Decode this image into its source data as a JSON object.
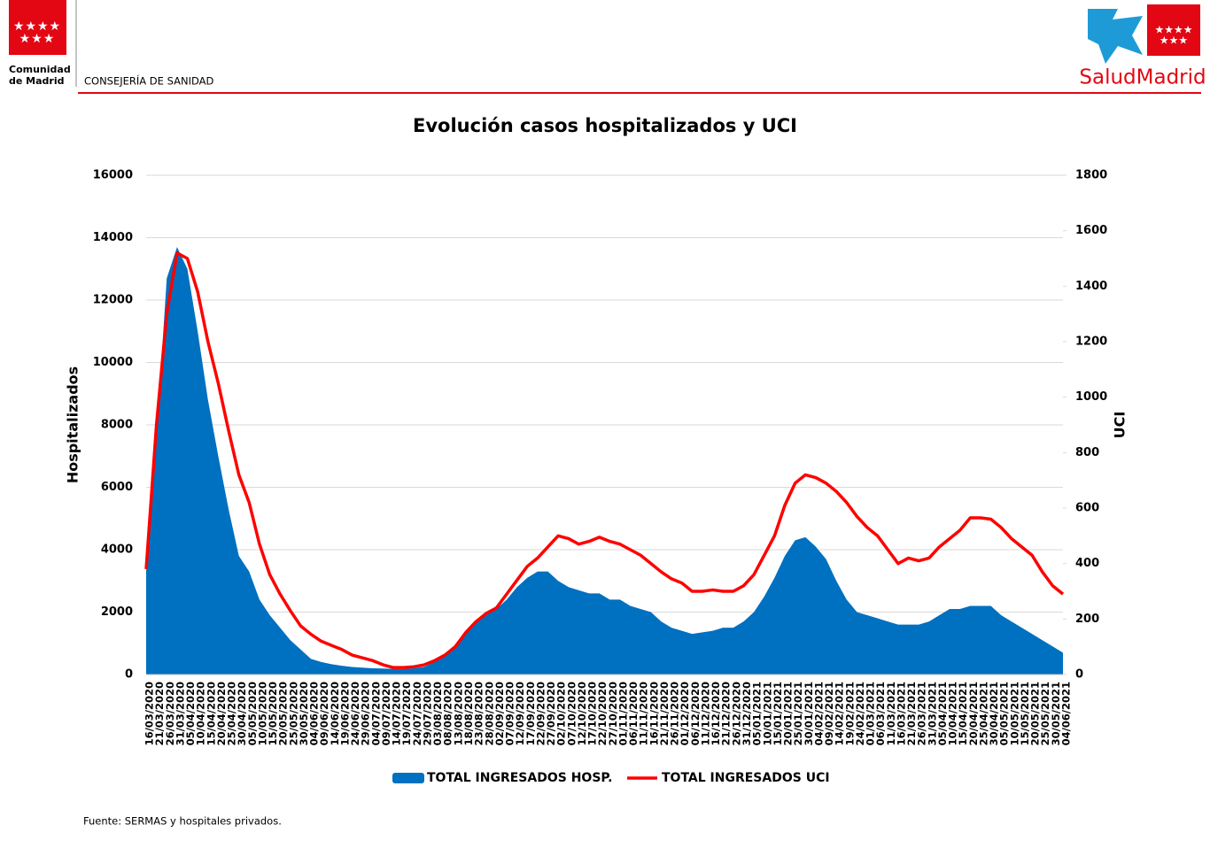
{
  "header": {
    "org_line1": "Comunidad",
    "org_line2": "de Madrid",
    "department": "CONSEJERÍA DE SANIDAD",
    "brand": "SaludMadrid"
  },
  "footer": "Fuente: SERMAS y hospitales privados.",
  "chart_data": {
    "type": "area_line",
    "title": "Evolución casos hospitalizados y UCI",
    "y_label": "Hospitalizados",
    "y2_label": "UCI",
    "categories": [
      "16/03/2020",
      "21/03/2020",
      "26/03/2020",
      "31/03/2020",
      "05/04/2020",
      "10/04/2020",
      "15/04/2020",
      "20/04/2020",
      "25/04/2020",
      "30/04/2020",
      "05/05/2020",
      "10/05/2020",
      "15/05/2020",
      "20/05/2020",
      "25/05/2020",
      "30/05/2020",
      "04/06/2020",
      "09/06/2020",
      "14/06/2020",
      "19/06/2020",
      "24/06/2020",
      "29/06/2020",
      "04/07/2020",
      "09/07/2020",
      "14/07/2020",
      "19/07/2020",
      "24/07/2020",
      "29/07/2020",
      "03/08/2020",
      "08/08/2020",
      "13/08/2020",
      "18/08/2020",
      "23/08/2020",
      "28/08/2020",
      "02/09/2020",
      "07/09/2020",
      "12/09/2020",
      "17/09/2020",
      "22/09/2020",
      "27/09/2020",
      "02/10/2020",
      "07/10/2020",
      "12/10/2020",
      "17/10/2020",
      "22/10/2020",
      "27/10/2020",
      "01/11/2020",
      "06/11/2020",
      "11/11/2020",
      "16/11/2020",
      "21/11/2020",
      "26/11/2020",
      "01/12/2020",
      "06/12/2020",
      "11/12/2020",
      "16/12/2020",
      "21/12/2020",
      "26/12/2020",
      "31/12/2020",
      "05/01/2021",
      "10/01/2021",
      "15/01/2021",
      "20/01/2021",
      "25/01/2021",
      "30/01/2021",
      "04/02/2021",
      "09/02/2021",
      "14/02/2021",
      "19/02/2021",
      "24/02/2021",
      "01/03/2021",
      "06/03/2021",
      "11/03/2021",
      "16/03/2021",
      "21/03/2021",
      "26/03/2021",
      "31/03/2021",
      "05/04/2021",
      "10/04/2021",
      "15/04/2021",
      "20/04/2021",
      "25/04/2021",
      "30/04/2021",
      "05/05/2021",
      "10/05/2021",
      "15/05/2021",
      "20/05/2021",
      "25/05/2021",
      "30/05/2021",
      "04/06/2021"
    ],
    "series": [
      {
        "name": "TOTAL INGRESADOS HOSP.",
        "kind": "area",
        "color": "#0070c0",
        "values": [
          3300,
          7600,
          12700,
          13700,
          13000,
          11000,
          8800,
          7000,
          5300,
          3800,
          3300,
          2400,
          1900,
          1500,
          1100,
          800,
          500,
          400,
          330,
          280,
          240,
          220,
          200,
          190,
          180,
          180,
          200,
          250,
          400,
          600,
          900,
          1300,
          1700,
          1900,
          2100,
          2400,
          2800,
          3100,
          3300,
          3300,
          3000,
          2800,
          2700,
          2600,
          2600,
          2400,
          2400,
          2200,
          2100,
          2000,
          1700,
          1500,
          1400,
          1300,
          1350,
          1400,
          1500,
          1500,
          1700,
          2000,
          2500,
          3100,
          3800,
          4300,
          4400,
          4100,
          3700,
          3000,
          2400,
          2000,
          1900,
          1800,
          1700,
          1600,
          1600,
          1600,
          1700,
          1900,
          2100,
          2100,
          2200,
          2200,
          2200,
          1900,
          1700,
          1500,
          1300,
          1100,
          900,
          700
        ]
      },
      {
        "name": "TOTAL INGRESADOS UCI",
        "kind": "line",
        "axis": "y2",
        "color": "#ff0000",
        "values": [
          380,
          900,
          1300,
          1520,
          1500,
          1380,
          1200,
          1050,
          880,
          720,
          620,
          470,
          360,
          290,
          230,
          175,
          145,
          120,
          105,
          90,
          70,
          60,
          50,
          35,
          25,
          25,
          28,
          35,
          50,
          70,
          100,
          150,
          190,
          220,
          240,
          290,
          340,
          390,
          420,
          460,
          500,
          490,
          470,
          480,
          495,
          480,
          470,
          450,
          430,
          400,
          370,
          345,
          330,
          300,
          300,
          305,
          300,
          300,
          320,
          360,
          430,
          500,
          610,
          690,
          720,
          710,
          690,
          660,
          620,
          570,
          530,
          500,
          450,
          400,
          420,
          410,
          420,
          460,
          490,
          520,
          565,
          565,
          560,
          530,
          490,
          460,
          430,
          370,
          320,
          290
        ]
      }
    ],
    "ylim": [
      0,
      16000
    ],
    "yticks": [
      0,
      2000,
      4000,
      6000,
      8000,
      10000,
      12000,
      14000,
      16000
    ],
    "y2lim": [
      0,
      1800
    ],
    "y2ticks": [
      0,
      200,
      400,
      600,
      800,
      1000,
      1200,
      1400,
      1600,
      1800
    ],
    "grid": true,
    "legend": "bottom"
  }
}
